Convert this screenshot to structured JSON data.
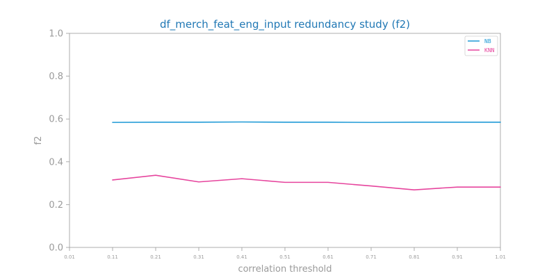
{
  "chart_data": {
    "type": "line",
    "title": "df_merch_feat_eng_input redundancy study (f2)",
    "xlabel": "correlation threshold",
    "ylabel": "f2",
    "x": [
      0.01,
      0.11,
      0.21,
      0.31,
      0.41,
      0.51,
      0.61,
      0.71,
      0.81,
      0.91,
      1.01
    ],
    "x_tick_labels": [
      "0.01",
      "0.11",
      "0.21",
      "0.31",
      "0.41",
      "0.51",
      "0.61",
      "0.71",
      "0.81",
      "0.91",
      "1.01"
    ],
    "xlim": [
      0.01,
      1.01
    ],
    "ylim": [
      0.0,
      1.0
    ],
    "y_tick_labels": [
      "0.0",
      "0.2",
      "0.4",
      "0.6",
      "0.8",
      "1.0"
    ],
    "y_ticks": [
      0.0,
      0.2,
      0.4,
      0.6,
      0.8,
      1.0
    ],
    "grid": false,
    "legend_position": "top-right",
    "series": [
      {
        "name": "NB",
        "color": "#1f9ad6",
        "x": [
          0.11,
          0.21,
          0.31,
          0.41,
          0.51,
          0.61,
          0.71,
          0.81,
          0.91,
          1.01
        ],
        "values": [
          0.584,
          0.585,
          0.585,
          0.586,
          0.585,
          0.585,
          0.584,
          0.585,
          0.585,
          0.585
        ]
      },
      {
        "name": "KNN",
        "color": "#e6449d",
        "x": [
          0.11,
          0.21,
          0.31,
          0.41,
          0.51,
          0.61,
          0.71,
          0.81,
          0.91,
          1.01
        ],
        "values": [
          0.315,
          0.337,
          0.306,
          0.321,
          0.304,
          0.304,
          0.287,
          0.269,
          0.282,
          0.282
        ]
      }
    ]
  }
}
